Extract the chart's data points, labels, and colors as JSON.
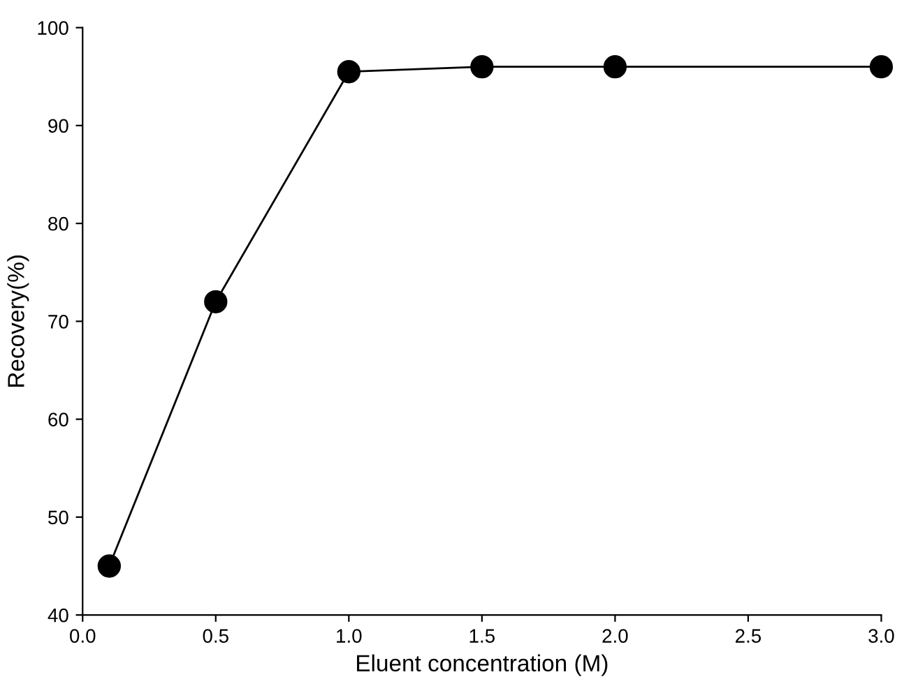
{
  "chart_data": {
    "type": "line",
    "xlabel": "Eluent concentration (M)",
    "ylabel": "Recovery(%)",
    "x": [
      0.1,
      0.5,
      1.0,
      1.5,
      2.0,
      3.0
    ],
    "series": [
      {
        "color": "#000000",
        "values": [
          45,
          72,
          95.5,
          96,
          96,
          96
        ]
      }
    ],
    "xlim": [
      0.0,
      3.0
    ],
    "xticks": [
      {
        "value": 0,
        "label": "0.0"
      },
      0.5,
      {
        "value": 1,
        "label": "1.0"
      },
      1.5,
      {
        "value": 2,
        "label": "2.0"
      },
      2.5,
      {
        "value": 3,
        "label": "3.0"
      }
    ],
    "ylim": [
      40,
      100
    ],
    "yticks": [
      40,
      50,
      60,
      70,
      80,
      90,
      100
    ],
    "marker": "circle",
    "line_style": "solid",
    "grid": false,
    "legend": false
  }
}
